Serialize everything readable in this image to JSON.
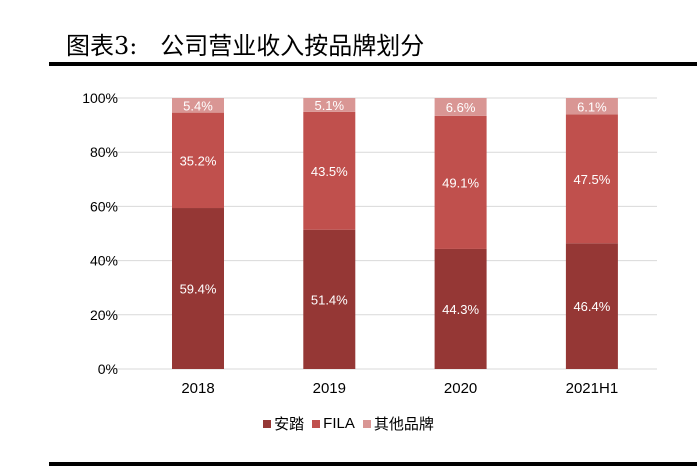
{
  "title": "图表3:   公司营业收入按品牌划分",
  "chart_data": {
    "type": "bar",
    "stacked": true,
    "categories": [
      "2018",
      "2019",
      "2020",
      "2021H1"
    ],
    "series": [
      {
        "name": "安踏",
        "values": [
          59.4,
          51.4,
          44.3,
          46.4
        ],
        "labels": [
          "59.4%",
          "51.4%",
          "44.3%",
          "46.4%"
        ],
        "color": "#953735"
      },
      {
        "name": "FILA",
        "values": [
          35.2,
          43.5,
          49.1,
          47.5
        ],
        "labels": [
          "35.2%",
          "43.5%",
          "49.1%",
          "47.5%"
        ],
        "color": "#C0504D"
      },
      {
        "name": "其他品牌",
        "values": [
          5.4,
          5.1,
          6.6,
          6.1
        ],
        "labels": [
          "5.4%",
          "5.1%",
          "6.6%",
          "6.1%"
        ],
        "color": "#D99694"
      }
    ],
    "ylim": [
      0,
      100
    ],
    "yticks": [
      "0%",
      "20%",
      "40%",
      "60%",
      "80%",
      "100%"
    ],
    "grid": true,
    "legend": "bottom"
  }
}
